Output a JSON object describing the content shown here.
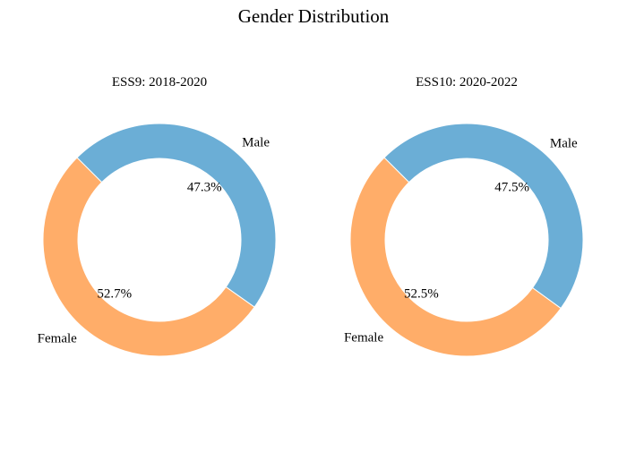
{
  "chart_data": {
    "type": "pie",
    "title": "Gender Distribution",
    "donut": true,
    "colors": {
      "Female": "#ffad69",
      "Male": "#6baed6"
    },
    "charts": [
      {
        "title": "ESS9: 2018-2020",
        "categories": [
          "Female",
          "Male"
        ],
        "values": [
          52.7,
          47.3
        ],
        "labels": [
          "52.7%",
          "47.3%"
        ]
      },
      {
        "title": "ESS10: 2020-2022",
        "categories": [
          "Female",
          "Male"
        ],
        "values": [
          52.5,
          47.5
        ],
        "labels": [
          "52.5%",
          "47.5%"
        ]
      }
    ]
  }
}
